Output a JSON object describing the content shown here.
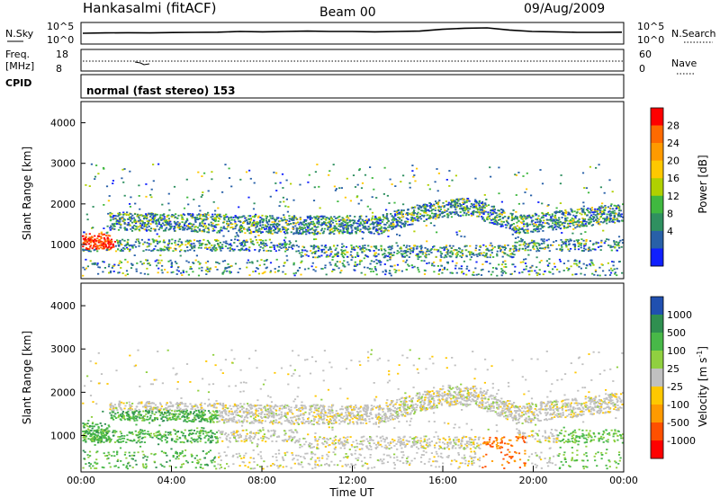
{
  "header": {
    "station": "Hankasalmi (fitACF)",
    "beam": "Beam 00",
    "date": "09/Aug/2009"
  },
  "cpid": {
    "label": "CPID",
    "text": "normal (fast stereo) 153"
  },
  "chart_data": [
    {
      "type": "line",
      "name": "noise-panel",
      "ylabel_left": "N.Sky",
      "ylabel_right": "N.Search",
      "ytick_left": [
        "10^5",
        "10^0"
      ],
      "ytick_right": [
        "10^5",
        "10^0"
      ],
      "series": [
        {
          "values": [
            0.5,
            0.52,
            0.53,
            0.52,
            0.54,
            0.55,
            0.56,
            0.6,
            0.58,
            0.6,
            0.62,
            0.6,
            0.6,
            0.58,
            0.6,
            0.62,
            0.72,
            0.78,
            0.8,
            0.68,
            0.6,
            0.58,
            0.55,
            0.55,
            0.56
          ]
        }
      ]
    },
    {
      "type": "line",
      "name": "freq-nave-panel",
      "ylabel_left": [
        "Freq.",
        "[MHz]"
      ],
      "ylabel_right": "Nave",
      "ytick_left": [
        "18",
        "8"
      ],
      "ytick_right": [
        "60",
        "0"
      ]
    },
    {
      "type": "heatmap",
      "name": "power-panel",
      "ylabel": "Slant Range [km]",
      "yticks": [
        1000,
        2000,
        3000,
        4000
      ],
      "ylim": [
        180,
        4500
      ],
      "colorbar_label": "Power [dB]",
      "colorbar_ticks": [
        "28",
        "24",
        "20",
        "16",
        "12",
        "8",
        "4"
      ],
      "colors": [
        "#ff0000",
        "#ff6a00",
        "#ff9a00",
        "#ffc800",
        "#b0d000",
        "#40b840",
        "#2f9060",
        "#2860a8",
        "#1020ff"
      ]
    },
    {
      "type": "heatmap",
      "name": "velocity-panel",
      "ylabel": "Slant Range [km]",
      "yticks": [
        1000,
        2000,
        3000,
        4000
      ],
      "ylim": [
        180,
        4500
      ],
      "colorbar_label": "Velocity [m s^-1]",
      "colorbar_ticks": [
        "1000",
        "500",
        "100",
        "25",
        "-25",
        "-100",
        "-500",
        "-1000"
      ],
      "colors": [
        "#2050b0",
        "#2f8f50",
        "#48b848",
        "#90d040",
        "#c0c0c0",
        "#ffc800",
        "#ff9a00",
        "#ff5000",
        "#ff0000"
      ],
      "xlabel": "Time UT",
      "xticks": [
        "00:00",
        "04:00",
        "08:00",
        "12:00",
        "16:00",
        "20:00",
        "00:00"
      ]
    }
  ]
}
